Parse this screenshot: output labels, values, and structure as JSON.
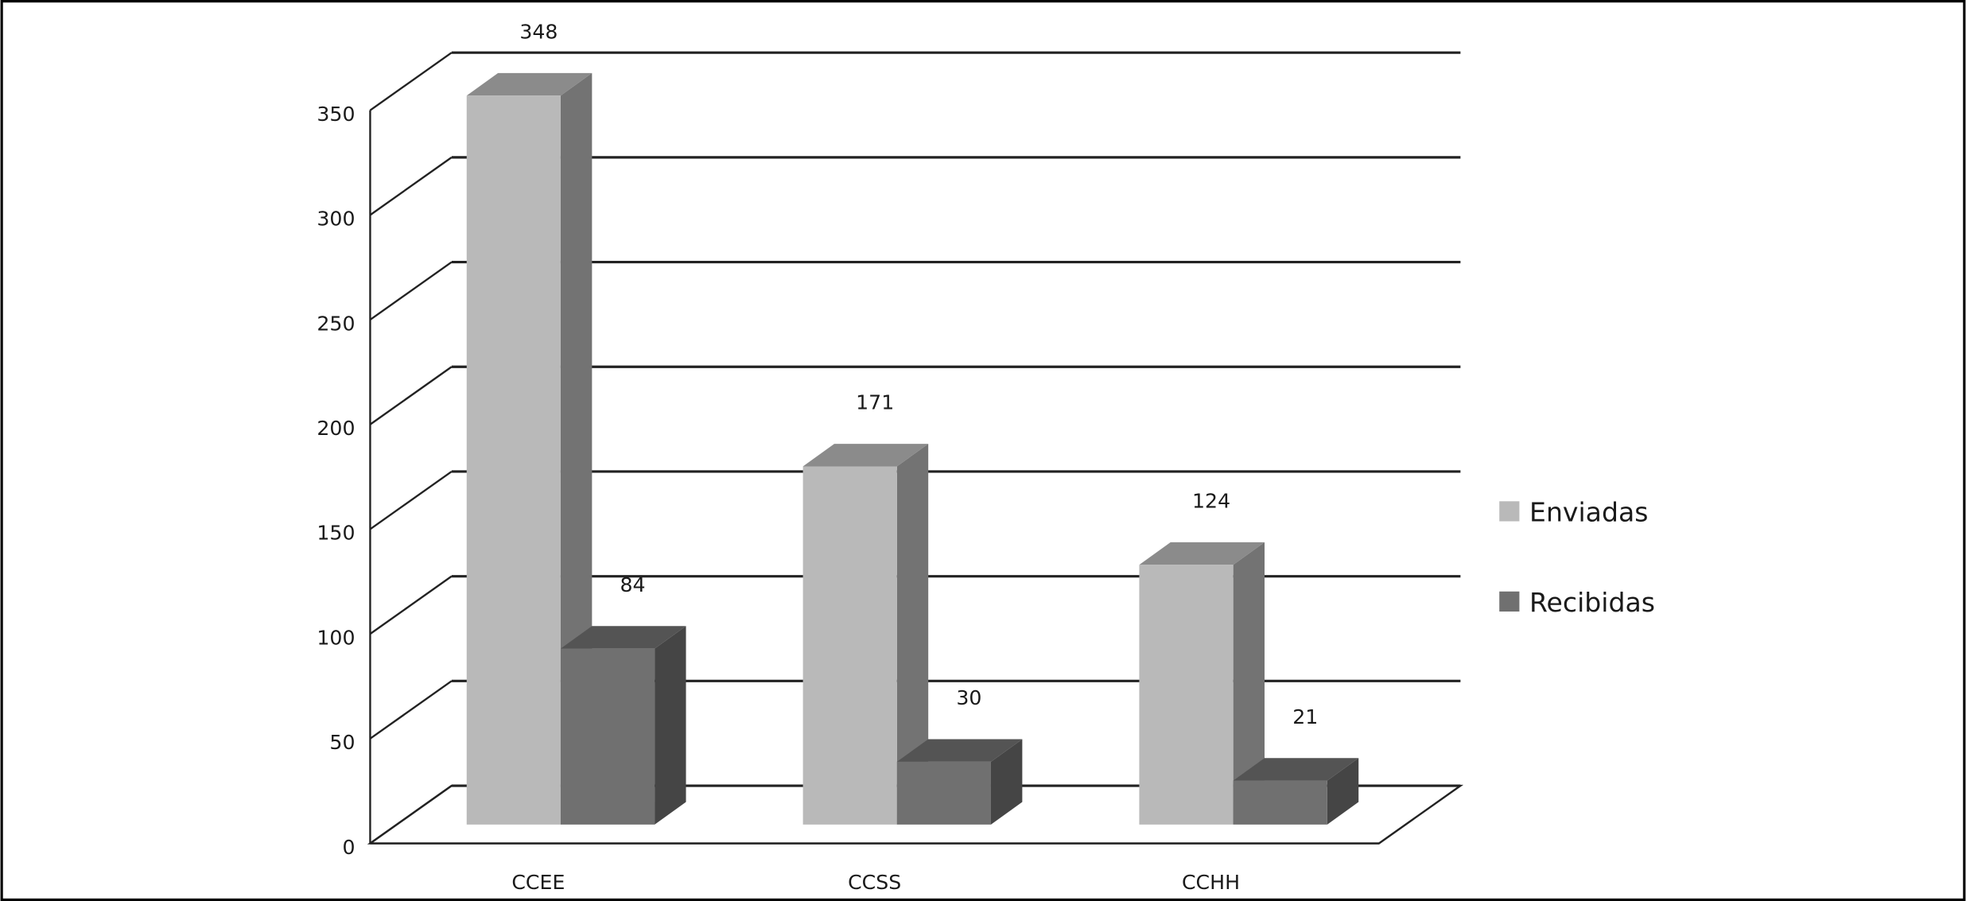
{
  "chart_data": {
    "type": "bar3d",
    "categories": [
      "CCEE",
      "CCSS",
      "CCHH"
    ],
    "series": [
      {
        "name": "Enviadas",
        "color": "#b9b9b9",
        "values": [
          348,
          171,
          124
        ]
      },
      {
        "name": "Recibidas",
        "color": "#707070",
        "values": [
          84,
          30,
          21
        ]
      }
    ],
    "ylim": [
      0,
      350
    ],
    "yticks": [
      0,
      50,
      100,
      150,
      200,
      250,
      300,
      350
    ],
    "grid": true,
    "legend": "right"
  }
}
